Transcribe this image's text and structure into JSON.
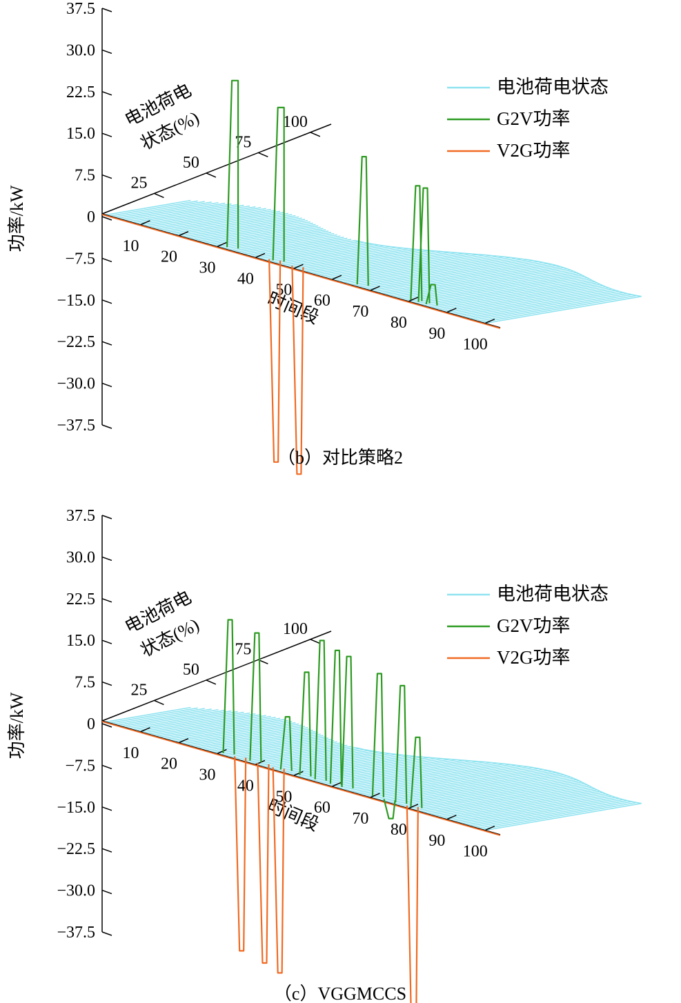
{
  "chart_data": [
    {
      "type": "line",
      "subtype": "3d-waterfall",
      "caption": "（b）对比策略2",
      "ylabel": "功率/kW",
      "xlabel": "时间段",
      "zlabel_line1": "电池荷电",
      "zlabel_line2": "状态(%)",
      "ylim": [
        -37.5,
        37.5
      ],
      "yticks": [
        "37.5",
        "30.0",
        "22.5",
        "15.0",
        "7.5",
        "0",
        "−7.5",
        "−15.0",
        "−22.5",
        "−30.0",
        "−37.5"
      ],
      "xticks": [
        "10",
        "20",
        "30",
        "40",
        "50",
        "60",
        "70",
        "80",
        "90",
        "100"
      ],
      "zticks": [
        "25",
        "50",
        "75",
        "100"
      ],
      "legend_position": "top-right",
      "series": [
        {
          "name": "电池荷电状态",
          "color": "#8fe3f0"
        },
        {
          "name": "G2V功率",
          "color": "#2c9a20",
          "pulses": [
            {
              "t": 33,
              "value": 30.0
            },
            {
              "t": 45,
              "value": 27.5
            },
            {
              "t": 67,
              "value": 23.0
            },
            {
              "t": 81,
              "value": 20.5
            },
            {
              "t": 83,
              "value": 20.5
            },
            {
              "t": 85,
              "value": 3.5
            }
          ]
        },
        {
          "name": "V2G功率",
          "color": "#f06a22",
          "pulses": [
            {
              "t": 44,
              "value": -36.5
            },
            {
              "t": 50,
              "value": -37.5
            }
          ]
        }
      ]
    },
    {
      "type": "line",
      "subtype": "3d-waterfall",
      "caption": "（c）VGGMCCS",
      "ylabel": "功率/kW",
      "xlabel": "时间段",
      "zlabel_line1": "电池荷电",
      "zlabel_line2": "状态(%)",
      "ylim": [
        -37.5,
        37.5
      ],
      "yticks": [
        "37.5",
        "30.0",
        "22.5",
        "15.0",
        "7.5",
        "0",
        "−7.5",
        "−15.0",
        "−22.5",
        "−30.0",
        "−37.5"
      ],
      "xticks": [
        "10",
        "20",
        "30",
        "40",
        "50",
        "60",
        "70",
        "80",
        "90",
        "100"
      ],
      "zticks": [
        "25",
        "50",
        "75",
        "100"
      ],
      "legend_position": "top-right",
      "series": [
        {
          "name": "电池荷电状态",
          "color": "#8fe3f0"
        },
        {
          "name": "G2V功率",
          "color": "#2c9a20",
          "pulses": [
            {
              "t": 32,
              "value": 24.0
            },
            {
              "t": 39,
              "value": 23.0
            },
            {
              "t": 47,
              "value": 9.5
            },
            {
              "t": 52,
              "value": 18.5
            },
            {
              "t": 56,
              "value": 25.0
            },
            {
              "t": 60,
              "value": 24.0
            },
            {
              "t": 63,
              "value": 23.5
            },
            {
              "t": 71,
              "value": 22.0
            },
            {
              "t": 74,
              "value": -3.5
            },
            {
              "t": 77,
              "value": 21.0
            },
            {
              "t": 81,
              "value": 12.5
            }
          ]
        },
        {
          "name": "V2G功率",
          "color": "#f06a22",
          "pulses": [
            {
              "t": 35,
              "value": -35.0
            },
            {
              "t": 41,
              "value": -36.0
            },
            {
              "t": 45,
              "value": -37.0
            },
            {
              "t": 80,
              "value": -44.0
            }
          ]
        }
      ]
    }
  ]
}
